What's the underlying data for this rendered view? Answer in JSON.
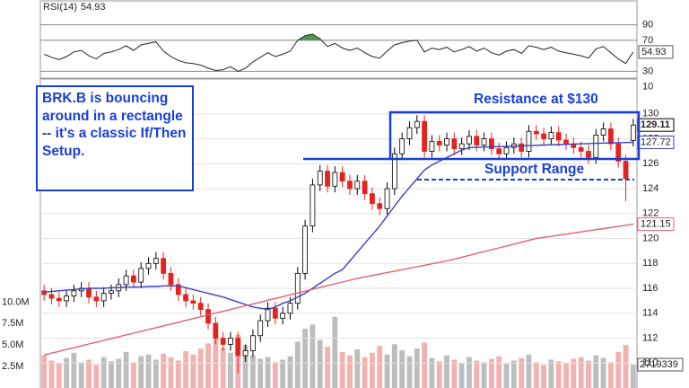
{
  "chart_data": {
    "type": "candlestick",
    "ylim": [
      108,
      132.8
    ],
    "yticks": [
      110,
      112,
      114,
      116,
      118,
      120,
      122,
      124,
      126,
      128,
      130
    ],
    "grid": true,
    "up_color": "#000000",
    "down_color": "#e3231c",
    "open": [
      115.8,
      115.5,
      115.2,
      115.0,
      115.4,
      115.8,
      116.0,
      115.3,
      115.0,
      115.6,
      115.8,
      116.3,
      117.0,
      116.5,
      117.6,
      118.0,
      118.4,
      117.2,
      116.3,
      115.5,
      115.0,
      114.8,
      114.3,
      113.2,
      112.0,
      111.5,
      112.0,
      110.6,
      111.0,
      112.2,
      113.4,
      114.4,
      113.6,
      114.0,
      114.8,
      117.2,
      121.0,
      124.3,
      125.4,
      124.2,
      125.3,
      124.6,
      124.0,
      124.6,
      123.6,
      122.8,
      122.4,
      124.0,
      126.8,
      128.0,
      128.9,
      129.4,
      127.0,
      127.8,
      127.5,
      128.0,
      127.2,
      127.6,
      128.2,
      127.5,
      128.0,
      127.2,
      126.8,
      127.3,
      127.6,
      127.0,
      128.6,
      128.4,
      128.0,
      128.5,
      127.9,
      127.6,
      127.3,
      127.0,
      126.5,
      128.3,
      128.8,
      127.6,
      126.2,
      127.87
    ],
    "high": [
      116.3,
      116.0,
      115.7,
      115.9,
      116.3,
      116.5,
      116.5,
      115.8,
      116.1,
      116.3,
      116.8,
      117.5,
      117.5,
      118.1,
      118.5,
      118.9,
      118.9,
      117.7,
      116.8,
      116.0,
      115.5,
      115.3,
      114.8,
      113.7,
      112.5,
      112.5,
      112.5,
      111.5,
      112.7,
      113.9,
      114.9,
      114.9,
      114.5,
      115.3,
      117.7,
      121.5,
      124.8,
      125.9,
      125.9,
      125.8,
      125.8,
      125.1,
      125.1,
      125.1,
      124.1,
      123.3,
      124.5,
      127.3,
      128.5,
      129.4,
      129.9,
      129.9,
      128.3,
      128.3,
      128.5,
      128.5,
      128.1,
      128.7,
      128.7,
      128.5,
      128.5,
      127.7,
      127.8,
      128.1,
      128.1,
      129.1,
      129.1,
      128.9,
      129.0,
      129.0,
      128.4,
      128.1,
      127.8,
      127.5,
      128.8,
      129.3,
      129.3,
      128.1,
      126.7,
      129.6
    ],
    "low": [
      115.0,
      114.7,
      114.5,
      114.5,
      114.9,
      115.3,
      114.8,
      114.5,
      114.5,
      115.1,
      115.3,
      115.8,
      116.0,
      116.0,
      117.1,
      117.5,
      116.7,
      115.8,
      115.0,
      114.5,
      114.3,
      113.8,
      112.7,
      111.5,
      111.0,
      111.0,
      109.2,
      110.1,
      110.5,
      111.7,
      112.9,
      113.1,
      113.1,
      113.5,
      114.3,
      116.7,
      120.5,
      123.8,
      123.7,
      123.7,
      124.1,
      123.5,
      123.5,
      123.1,
      122.3,
      121.9,
      121.9,
      123.5,
      126.3,
      127.5,
      128.4,
      126.5,
      126.5,
      127.0,
      127.0,
      126.7,
      126.7,
      127.1,
      127.0,
      127.0,
      126.7,
      126.3,
      126.3,
      126.8,
      126.5,
      126.5,
      127.9,
      127.5,
      127.5,
      127.4,
      127.1,
      126.8,
      126.5,
      126.0,
      126.0,
      127.8,
      127.1,
      125.7,
      123.0,
      127.4
    ],
    "close": [
      115.5,
      115.2,
      115.0,
      115.4,
      115.8,
      116.0,
      115.3,
      115.0,
      115.6,
      115.8,
      116.3,
      117.0,
      116.5,
      117.6,
      118.0,
      118.4,
      117.2,
      116.3,
      115.5,
      115.0,
      114.8,
      114.3,
      113.2,
      112.0,
      111.5,
      112.0,
      110.6,
      111.0,
      112.2,
      113.4,
      114.4,
      113.6,
      114.0,
      114.8,
      117.2,
      121.0,
      124.3,
      125.4,
      124.2,
      125.3,
      124.6,
      124.0,
      124.6,
      123.6,
      122.8,
      122.4,
      124.0,
      126.8,
      128.0,
      128.9,
      129.4,
      127.0,
      127.8,
      127.5,
      128.0,
      127.2,
      127.6,
      128.2,
      127.5,
      128.0,
      127.2,
      126.8,
      127.3,
      127.6,
      127.0,
      128.6,
      128.4,
      128.0,
      128.5,
      127.9,
      127.6,
      127.3,
      127.0,
      126.5,
      128.3,
      128.8,
      127.6,
      126.2,
      124.8,
      129.11
    ],
    "series": [
      {
        "color": "#3b3fc4",
        "values": [
          115.7,
          115.75,
          115.8,
          115.85,
          115.9,
          115.95,
          116.0,
          116.0,
          116.0,
          116.05,
          116.05,
          116.1,
          116.1,
          116.1,
          116.15,
          116.15,
          116.2,
          116.2,
          116.2,
          116.05,
          115.9,
          115.75,
          115.6,
          115.45,
          115.3,
          115.1,
          114.9,
          114.7,
          114.5,
          114.4,
          114.3,
          114.5,
          114.8,
          115.0,
          115.3,
          115.6,
          116.0,
          116.4,
          116.8,
          117.2,
          117.5,
          118.2,
          118.9,
          119.6,
          120.3,
          121.0,
          121.8,
          122.6,
          123.4,
          124.1,
          124.8,
          125.5,
          125.9,
          126.2,
          126.5,
          126.8,
          127.1,
          127.3,
          127.32,
          127.34,
          127.36,
          127.38,
          127.4,
          127.42,
          127.44,
          127.46,
          127.48,
          127.5,
          127.52,
          127.54,
          127.56,
          127.58,
          127.6,
          127.62,
          127.64,
          127.66,
          127.68,
          127.69,
          127.7,
          127.72
        ]
      },
      {
        "color": "#e4606c",
        "values": [
          110.65,
          110.8,
          110.94,
          111.09,
          111.23,
          111.38,
          111.53,
          111.67,
          111.82,
          111.97,
          112.11,
          112.26,
          112.4,
          112.55,
          112.7,
          112.84,
          112.99,
          113.13,
          113.28,
          113.43,
          113.57,
          113.72,
          113.87,
          114.01,
          114.16,
          114.3,
          114.45,
          114.6,
          114.75,
          114.89,
          115.04,
          115.19,
          115.33,
          115.48,
          115.63,
          115.77,
          115.92,
          116.07,
          116.21,
          116.36,
          116.51,
          116.65,
          116.8,
          116.92,
          117.03,
          117.15,
          117.27,
          117.38,
          117.5,
          117.62,
          117.73,
          117.85,
          117.97,
          118.08,
          118.2,
          118.35,
          118.5,
          118.65,
          118.8,
          118.95,
          119.1,
          119.25,
          119.4,
          119.55,
          119.7,
          119.85,
          120.0,
          120.09,
          120.18,
          120.27,
          120.35,
          120.44,
          120.53,
          120.62,
          120.71,
          120.8,
          120.88,
          120.97,
          121.06,
          121.15
        ]
      }
    ],
    "volume": {
      "color": "#bdbdbd",
      "down_color": "#f3b0b0",
      "ylim": [
        0,
        36000000
      ],
      "yticks": [
        {
          "value": 2500000,
          "label": "2.5M"
        },
        {
          "value": 5000000,
          "label": "5.0M"
        },
        {
          "value": 7500000,
          "label": "7.5M"
        },
        {
          "value": 10000000,
          "label": "10.0M"
        }
      ],
      "values": [
        3800000,
        3200000,
        2900000,
        3500000,
        4100000,
        3000000,
        3300000,
        2700000,
        3600000,
        3100000,
        3400000,
        4200000,
        3000000,
        3700000,
        3900000,
        3300000,
        4000000,
        3600000,
        3200000,
        4300000,
        3900000,
        4600000,
        5200000,
        5800000,
        4700000,
        4100000,
        6200000,
        5000000,
        3800000,
        3400000,
        3600000,
        3000000,
        3300000,
        3700000,
        5400000,
        6900000,
        7400000,
        5600000,
        4800000,
        8300000,
        4200000,
        3800000,
        4500000,
        3600000,
        4100000,
        4900000,
        3900000,
        5100000,
        4400000,
        3700000,
        4600000,
        5300000,
        3500000,
        3100000,
        3800000,
        3300000,
        2900000,
        3600000,
        3200000,
        3000000,
        3400000,
        3700000,
        2800000,
        3200000,
        3500000,
        3900000,
        3000000,
        2700000,
        3300000,
        3100000,
        2900000,
        3400000,
        3600000,
        3200000,
        3800000,
        3500000,
        3000000,
        4200000,
        5000000,
        2719339
      ]
    },
    "rsi": {
      "name": "RSI(14)",
      "color": "#222222",
      "fill": "#4c9a4c",
      "ylim": [
        20,
        122
      ],
      "yticks": [
        10,
        30,
        70,
        90
      ],
      "values": [
        52,
        48,
        45,
        49,
        55,
        57,
        50,
        46,
        53,
        55,
        58,
        63,
        57,
        64,
        66,
        68,
        56,
        49,
        44,
        41,
        40,
        38,
        34,
        31,
        32,
        36,
        30,
        34,
        42,
        48,
        54,
        49,
        52,
        56,
        70,
        76,
        78,
        72,
        62,
        66,
        60,
        57,
        60,
        54,
        49,
        47,
        56,
        64,
        67,
        69,
        70,
        55,
        60,
        58,
        61,
        55,
        58,
        62,
        56,
        60,
        54,
        51,
        56,
        58,
        53,
        63,
        61,
        58,
        61,
        56,
        54,
        52,
        50,
        47,
        59,
        62,
        54,
        46,
        40,
        54.93
      ]
    },
    "annotations": [
      "BRK.B is bouncing around in a rectangle -- it's a classic If/Then Setup.",
      "Resistance at $130",
      "Support Range"
    ]
  }
}
